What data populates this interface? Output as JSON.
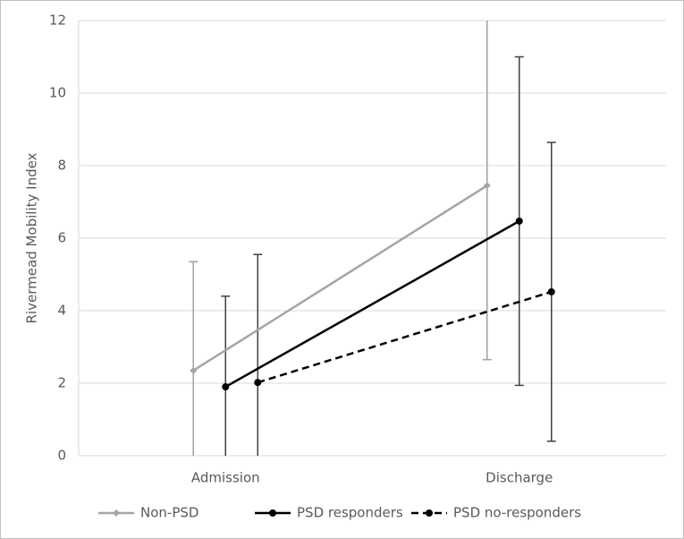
{
  "chart_data": {
    "type": "line",
    "y_label": "Rivermead Mobility Index",
    "categories": [
      "Admission",
      "Discharge"
    ],
    "series": [
      {
        "name": "Non-PSD",
        "color": "#a5a5a5",
        "error_color": "#a0a0a0",
        "marker": "diamond",
        "linestyle": "solid",
        "values": [
          2.35,
          7.45
        ],
        "errors": [
          3.0,
          4.8
        ]
      },
      {
        "name": "PSD responders",
        "color": "#000000",
        "error_color": "#404040",
        "marker": "circle",
        "linestyle": "solid",
        "values": [
          1.9,
          6.47
        ],
        "errors": [
          2.5,
          4.53
        ]
      },
      {
        "name": "PSD no-responders",
        "color": "#000000",
        "error_color": "#404040",
        "marker": "circle",
        "linestyle": "dashed",
        "values": [
          2.02,
          4.52
        ],
        "errors": [
          3.53,
          4.12
        ]
      }
    ],
    "ylim": [
      0,
      12
    ],
    "yticks": [
      0,
      2,
      4,
      6,
      8,
      10,
      12
    ],
    "grid": true,
    "legend": "bottom"
  }
}
